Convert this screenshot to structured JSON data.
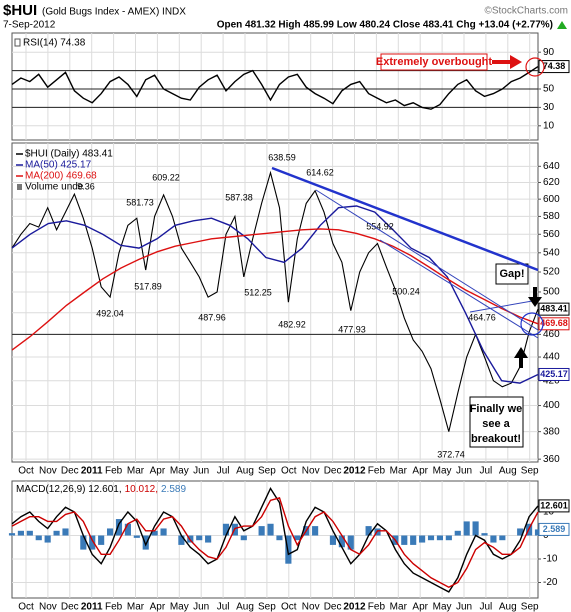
{
  "header": {
    "symbol": "$HUI",
    "name": "(Gold Bugs Index - AMEX) INDX",
    "credit": "©StockCharts.com",
    "date": "7-Sep-2012",
    "quote": "Open 481.32 High 485.99 Low 480.24 Close 483.41 Chg +13.04 (+2.77%)"
  },
  "chart_data": [
    {
      "type": "line",
      "label": "RSI(14) 74.38",
      "ylim": [
        0,
        100
      ],
      "yticks": [
        90,
        70,
        50,
        30,
        10
      ],
      "ref_lines": [
        70,
        50,
        30
      ],
      "annotation": "Extremely overbought",
      "series": [
        {
          "name": "RSI(14)",
          "color": "#000000",
          "box": true,
          "values": [
            55,
            62,
            58,
            66,
            52,
            60,
            68,
            48,
            40,
            35,
            45,
            58,
            63,
            55,
            42,
            60,
            65,
            50,
            45,
            40,
            38,
            52,
            60,
            65,
            48,
            58,
            66,
            70,
            55,
            38,
            55,
            63,
            66,
            52,
            45,
            40,
            34,
            48,
            55,
            58,
            45,
            40,
            35,
            38,
            32,
            35,
            30,
            28,
            33,
            45,
            55,
            60,
            48,
            42,
            45,
            50,
            58,
            62,
            68,
            74.38
          ]
        }
      ]
    },
    {
      "type": "line",
      "log_scale": true,
      "ylim": [
        358,
        670
      ],
      "yticks": [
        360,
        380,
        400,
        420,
        440,
        460,
        480,
        500,
        520,
        540,
        560,
        580,
        600,
        620,
        640
      ],
      "ref_lines": [
        460
      ],
      "legend_extra": "Volume unde",
      "peak_labels": [
        "638.59",
        "614.62",
        "609.22",
        "581.73",
        "587.38",
        "554.92",
        "517.89",
        "492.04",
        "487.96",
        "512.25",
        "482.92",
        "477.93",
        "464.76",
        "500.24",
        "372.74",
        "9.36"
      ],
      "gap_note": "Gap!",
      "callout": [
        "Finally we",
        "see a",
        "breakout!"
      ],
      "xtick_labels": [
        "Oct",
        "Nov",
        "Dec",
        "2011",
        "Feb",
        "Mar",
        "Apr",
        "May",
        "Jun",
        "Jul",
        "Aug",
        "Sep",
        "Oct",
        "Nov",
        "Dec",
        "2012",
        "Feb",
        "Mar",
        "Apr",
        "May",
        "Jun",
        "Jul",
        "Aug",
        "Sep"
      ],
      "series": [
        {
          "name": "$HUI (Daily) 483.41",
          "color": "#000000",
          "box": true,
          "values": [
            545,
            560,
            572,
            568,
            590,
            565,
            585,
            606,
            578,
            545,
            505,
            495,
            540,
            570,
            578,
            522,
            580,
            605,
            580,
            545,
            530,
            515,
            495,
            500,
            560,
            580,
            515,
            555,
            595,
            632,
            590,
            490,
            555,
            595,
            610,
            585,
            550,
            530,
            482,
            520,
            540,
            550,
            525,
            502,
            475,
            455,
            445,
            430,
            405,
            380,
            410,
            440,
            460,
            440,
            420,
            415,
            418,
            432,
            462,
            483.41
          ]
        },
        {
          "name": "MA(50) 425.17",
          "color": "#1a1a9c",
          "box": true,
          "values": [
            545,
            560,
            572,
            575,
            570,
            560,
            548,
            545,
            555,
            570,
            575,
            578,
            570,
            555,
            535,
            530,
            545,
            570,
            590,
            592,
            585,
            565,
            545,
            535,
            515,
            480,
            445,
            420,
            418,
            425.17
          ]
        },
        {
          "name": "MA(200) 469.68",
          "color": "#dd1111",
          "box": true,
          "values": [
            446,
            458,
            472,
            487,
            500,
            513,
            524,
            533,
            541,
            547,
            551,
            555,
            557,
            559,
            561,
            563,
            565,
            566,
            565,
            561,
            555,
            547,
            537,
            525,
            513,
            502,
            493,
            484,
            476,
            469.68
          ]
        }
      ]
    },
    {
      "type": "line",
      "label_parts": [
        {
          "text": "MACD(12,26,9) 12.601,",
          "color": "#000000"
        },
        {
          "text": "10.012,",
          "color": "#cc0000"
        },
        {
          "text": "2.589",
          "color": "#3a7ab8"
        }
      ],
      "ylim": [
        -26.6,
        23.2
      ],
      "yticks": [
        10,
        0,
        -10,
        -20
      ],
      "xtick_labels": [
        "Oct",
        "Nov",
        "Dec",
        "2011",
        "Feb",
        "Mar",
        "Apr",
        "May",
        "Jun",
        "Jul",
        "Aug",
        "Sep",
        "Oct",
        "Nov",
        "Dec",
        "2012",
        "Feb",
        "Mar",
        "Apr",
        "May",
        "Jun",
        "Jul",
        "Aug",
        "Sep"
      ],
      "series": [
        {
          "name": "Histogram",
          "kind": "bar",
          "color": "#3a7ab8",
          "box": true,
          "values": [
            1,
            2,
            2,
            -2,
            -3,
            2,
            3,
            0,
            -6,
            -6,
            -4,
            3,
            7,
            5,
            -1,
            -6,
            2,
            3,
            0,
            -4,
            -3,
            -2,
            -3,
            0,
            5,
            5,
            -2,
            0,
            4,
            5,
            -2,
            -12,
            -2,
            4,
            4,
            0,
            -4,
            -5,
            -6,
            0,
            4,
            3,
            0,
            -4,
            -4,
            -4,
            -3,
            -2,
            -2,
            -2,
            2,
            6,
            6,
            1,
            -3,
            -2,
            0,
            3,
            5,
            2.589
          ]
        },
        {
          "name": "MACD",
          "color": "#000000",
          "box": true,
          "values": [
            5,
            8,
            10,
            6,
            3,
            8,
            12,
            10,
            0,
            -8,
            -12,
            -5,
            5,
            10,
            6,
            -4,
            4,
            10,
            8,
            0,
            -5,
            -8,
            -12,
            -10,
            0,
            8,
            2,
            4,
            12,
            20,
            14,
            -8,
            -6,
            6,
            12,
            10,
            2,
            -5,
            -12,
            -8,
            0,
            5,
            2,
            -6,
            -12,
            -16,
            -18,
            -20,
            -22,
            -24,
            -18,
            -8,
            0,
            -2,
            -8,
            -10,
            -8,
            -2,
            8,
            12.601
          ]
        },
        {
          "name": "Signal",
          "color": "#cc0000",
          "values": [
            4,
            6,
            8,
            8,
            6,
            6,
            9,
            10,
            6,
            -2,
            -8,
            -8,
            -2,
            5,
            7,
            2,
            2,
            7,
            8,
            4,
            -2,
            -6,
            -9,
            -10,
            -5,
            3,
            4,
            4,
            8,
            15,
            16,
            4,
            -4,
            2,
            8,
            10,
            6,
            0,
            -6,
            -8,
            -4,
            2,
            2,
            -2,
            -8,
            -12,
            -15,
            -18,
            -20,
            -22,
            -20,
            -14,
            -6,
            -3,
            -5,
            -8,
            -8,
            -5,
            3,
            10.012
          ]
        }
      ]
    }
  ]
}
